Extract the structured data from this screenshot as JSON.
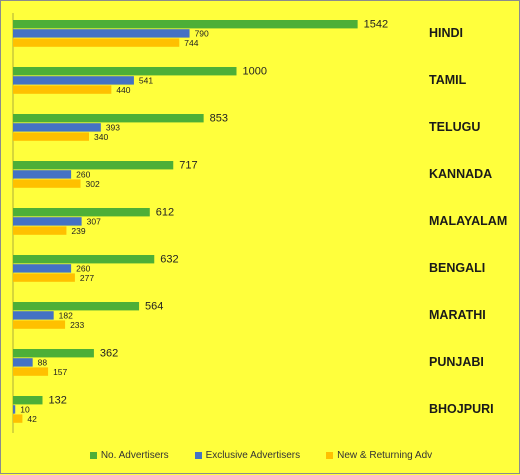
{
  "chart_data": {
    "type": "bar",
    "orientation": "horizontal",
    "categories": [
      "HINDI",
      "TAMIL",
      "TELUGU",
      "KANNADA",
      "MALAYALAM",
      "BENGALI",
      "MARATHI",
      "PUNJABI",
      "BHOJPURI"
    ],
    "series": [
      {
        "name": "No. Advertisers",
        "color": "#4DAF37",
        "values": [
          1542,
          1000,
          853,
          717,
          612,
          632,
          564,
          362,
          132
        ]
      },
      {
        "name": "Exclusive Advertisers",
        "color": "#4472C4",
        "values": [
          790,
          541,
          393,
          260,
          307,
          260,
          182,
          88,
          10
        ]
      },
      {
        "name": "New & Returning Adv",
        "color": "#FFC000",
        "values": [
          744,
          440,
          340,
          302,
          239,
          277,
          233,
          157,
          42
        ]
      }
    ],
    "legend_position": "bottom",
    "grid": false
  }
}
